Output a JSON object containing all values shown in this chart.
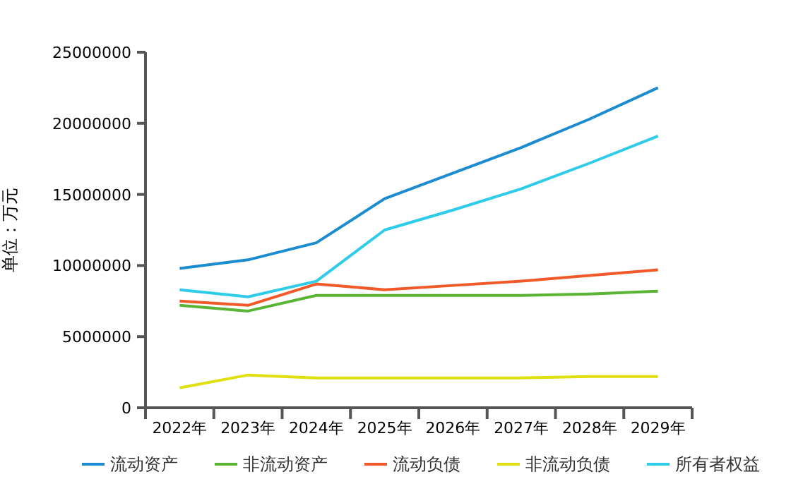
{
  "chart_data": {
    "type": "line",
    "ylabel": "单位：万元",
    "categories": [
      "2022年",
      "2023年",
      "2024年",
      "2025年",
      "2026年",
      "2027年",
      "2028年",
      "2029年"
    ],
    "ylim": [
      0,
      25000000
    ],
    "yticks": [
      0,
      5000000,
      10000000,
      15000000,
      20000000,
      25000000
    ],
    "legend": "bottom",
    "grid": false,
    "marker": "none",
    "line_style": "solid",
    "series": [
      {
        "name": "流动资产",
        "color": "#1a8ccf",
        "values": [
          9800000,
          10400000,
          11600000,
          14700000,
          16500000,
          18300000,
          20300000,
          22500000
        ]
      },
      {
        "name": "非流动资产",
        "color": "#5bb535",
        "values": [
          7200000,
          6800000,
          7900000,
          7900000,
          7900000,
          7900000,
          8000000,
          8200000
        ]
      },
      {
        "name": "流动负债",
        "color": "#f05a28",
        "values": [
          7500000,
          7200000,
          8700000,
          8300000,
          8600000,
          8900000,
          9300000,
          9700000
        ]
      },
      {
        "name": "非流动负债",
        "color": "#e0e010",
        "values": [
          1400000,
          2300000,
          2100000,
          2100000,
          2100000,
          2100000,
          2200000,
          2200000
        ]
      },
      {
        "name": "所有者权益",
        "color": "#2ecce8",
        "values": [
          8300000,
          7800000,
          8900000,
          12500000,
          13900000,
          15400000,
          17200000,
          19100000
        ]
      }
    ]
  }
}
